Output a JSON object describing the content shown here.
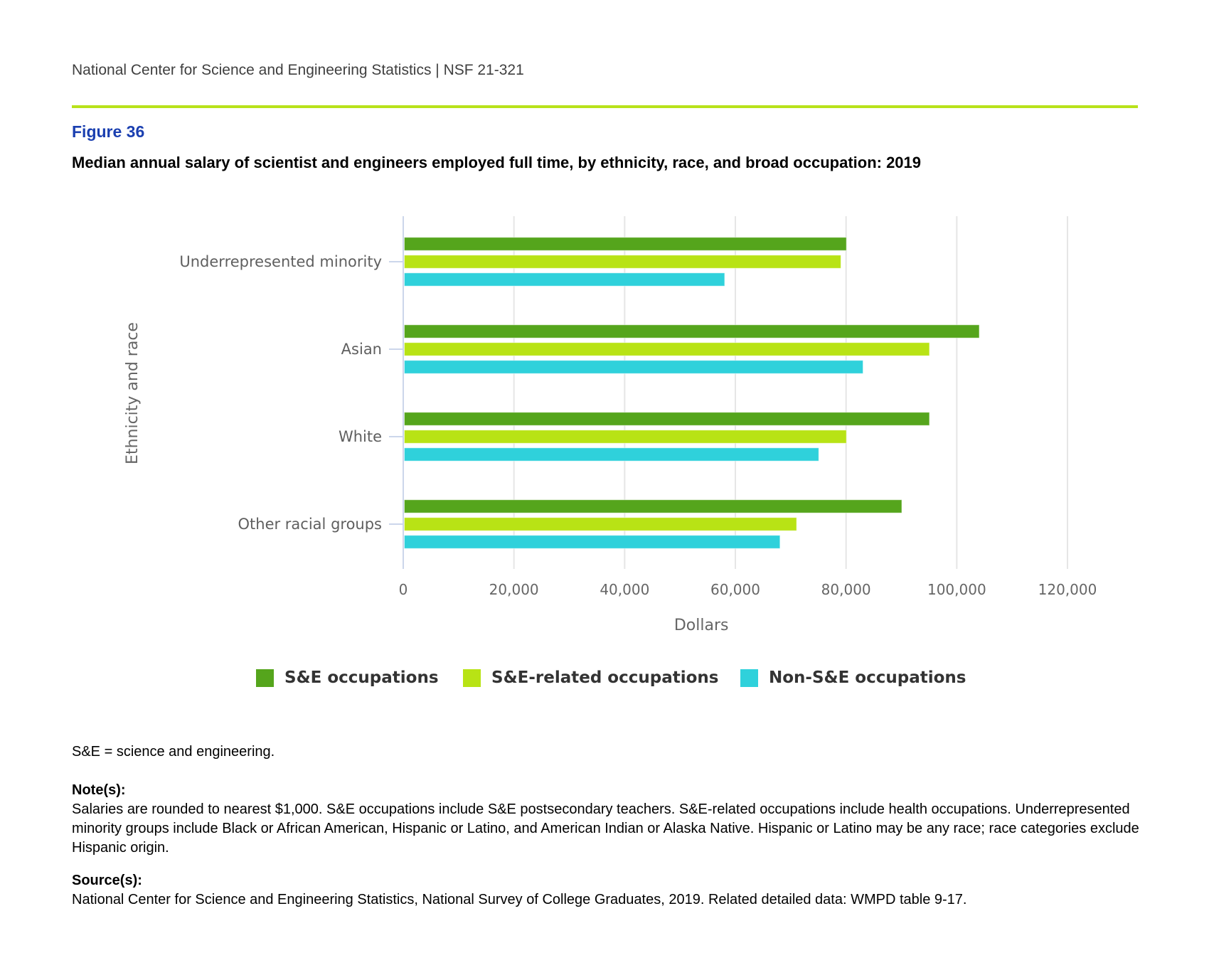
{
  "header": {
    "text": "National Center for Science and Engineering Statistics  |  NSF 21-321",
    "rule_color": "#b8e21a"
  },
  "figure": {
    "number": "Figure 36",
    "title": "Median annual salary of scientist and engineers employed full time, by ethnicity, race, and broad occupation: 2019"
  },
  "chart_data": {
    "type": "bar",
    "orientation": "horizontal",
    "title": "Median annual salary of scientist and engineers employed full time, by ethnicity, race, and broad occupation: 2019",
    "xlabel": "Dollars",
    "ylabel": "Ethnicity and race",
    "categories": [
      "Underrepresented minority",
      "Asian",
      "White",
      "Other racial groups"
    ],
    "series": [
      {
        "name": "S&E occupations",
        "color": "#55a51c",
        "values": [
          80000,
          104000,
          95000,
          90000
        ]
      },
      {
        "name": "S&E-related occupations",
        "color": "#b8e315",
        "values": [
          79000,
          95000,
          80000,
          71000
        ]
      },
      {
        "name": "Non-S&E occupations",
        "color": "#2fd1db",
        "values": [
          58000,
          83000,
          75000,
          68000
        ]
      }
    ],
    "xlim": [
      0,
      120000
    ],
    "xticks": [
      0,
      20000,
      40000,
      60000,
      80000,
      100000,
      120000
    ],
    "xtick_labels": [
      "0",
      "20,000",
      "40,000",
      "60,000",
      "80,000",
      "100,000",
      "120,000"
    ],
    "grid": true,
    "legend_position": "bottom"
  },
  "footer": {
    "abbrev": "S&E = science and engineering.",
    "notes_heading": "Note(s):",
    "notes_text": "Salaries are rounded to nearest $1,000. S&E occupations include S&E postsecondary teachers. S&E-related occupations include health occupations. Underrepresented minority groups include Black or African American, Hispanic or Latino, and American Indian or Alaska Native. Hispanic or Latino may be any race; race categories exclude Hispanic origin.",
    "source_heading": "Source(s):",
    "source_text": "National Center for Science and Engineering Statistics, National Survey of College Graduates, 2019. Related detailed data: WMPD table 9-17."
  }
}
